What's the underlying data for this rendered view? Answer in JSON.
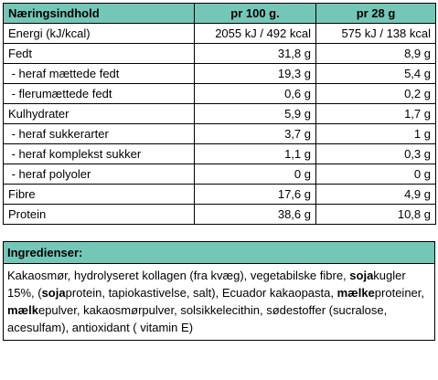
{
  "table": {
    "header": [
      "Næringsindhold",
      "pr 100 g.",
      "pr 28 g"
    ],
    "rows": [
      [
        "Energi (kJ/kcal)",
        "2055 kJ / 492 kcal",
        "575 kJ / 138 kcal"
      ],
      [
        "Fedt",
        "31,8 g",
        "8,9 g"
      ],
      [
        " - heraf mættede fedt",
        "19,3 g",
        "5,4 g"
      ],
      [
        " - flerumættede fedt",
        "0,6 g",
        "0,2 g"
      ],
      [
        "Kulhydrater",
        "5,9 g",
        "1,7 g"
      ],
      [
        " - heraf sukkerarter",
        "3,7 g",
        "1 g"
      ],
      [
        " - heraf komplekst sukker",
        "1,1 g",
        "0,3 g"
      ],
      [
        " - heraf polyoler",
        "0 g",
        "0 g"
      ],
      [
        "Fibre",
        "17,6 g",
        "4,9 g"
      ],
      [
        "Protein",
        "38,6 g",
        "10,8 g"
      ]
    ]
  },
  "ingredients": {
    "title": "Ingredienser:",
    "segments": [
      {
        "text": "Kakaosmør, hydrolyseret kollagen (fra kvæg), vegetabilske fibre, ",
        "bold": false
      },
      {
        "text": "soja",
        "bold": true
      },
      {
        "text": "kugler 15%, (",
        "bold": false
      },
      {
        "text": "soja",
        "bold": true
      },
      {
        "text": "protein, tapiokastivelse, salt), Ecuador kakaopasta, ",
        "bold": false
      },
      {
        "text": "mælke",
        "bold": true
      },
      {
        "text": "proteiner, ",
        "bold": false
      },
      {
        "text": "mælk",
        "bold": true
      },
      {
        "text": "epulver, kakaosmørpulver, solsikkelecithin, sødestoffer (sucralose, acesulfam), antioxidant ( vitamin E)",
        "bold": false
      }
    ]
  }
}
